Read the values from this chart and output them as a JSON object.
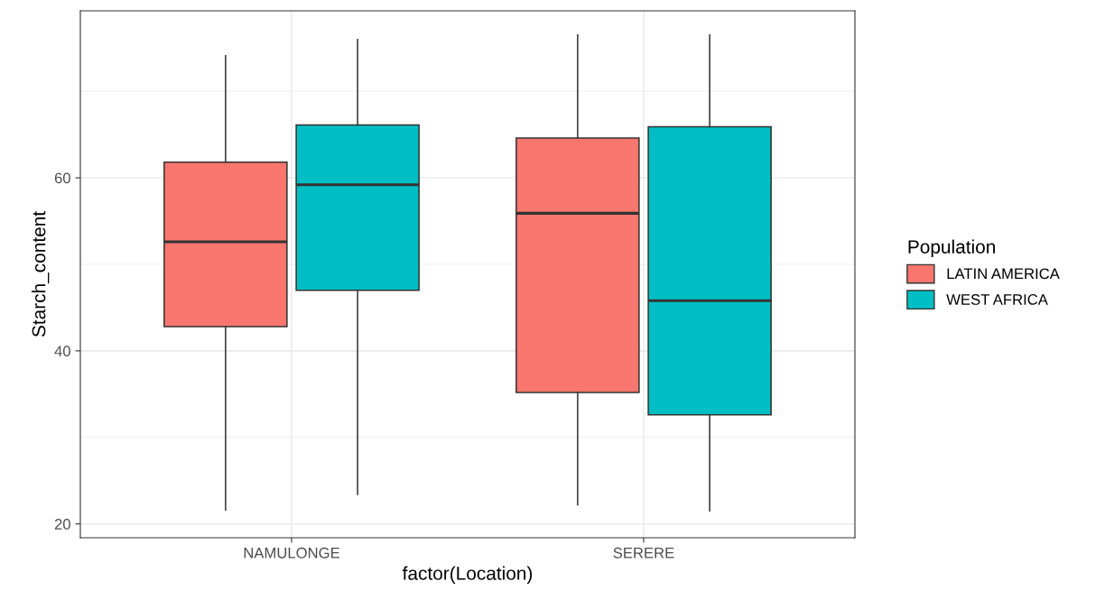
{
  "chart_data": {
    "type": "box",
    "xlabel": "factor(Location)",
    "ylabel": "Starch_content",
    "legend_title": "Population",
    "legend": "right",
    "grid": true,
    "categories": [
      "NAMULONGE",
      "SERERE"
    ],
    "ylim": [
      18.4,
      79.3
    ],
    "yticks": [
      20,
      {
        "value": 30,
        "label": null
      },
      40,
      {
        "value": 50,
        "label": null
      },
      60,
      {
        "value": 70,
        "label": null
      }
    ],
    "series": [
      {
        "name": "LATIN AMERICA",
        "color": "#f8766d",
        "boxes": [
          {
            "low": 21.6,
            "q1": 42.8,
            "median": 52.6,
            "q3": 61.8,
            "high": 74.1
          },
          {
            "low": 22.2,
            "q1": 35.2,
            "median": 55.9,
            "q3": 64.6,
            "high": 76.5
          }
        ]
      },
      {
        "name": "WEST AFRICA",
        "color": "#00bfc4",
        "boxes": [
          {
            "low": 23.4,
            "q1": 47.0,
            "median": 59.2,
            "q3": 66.1,
            "high": 76.0
          },
          {
            "low": 21.5,
            "q1": 32.6,
            "median": 45.8,
            "q3": 65.9,
            "high": 76.5
          }
        ]
      }
    ]
  }
}
